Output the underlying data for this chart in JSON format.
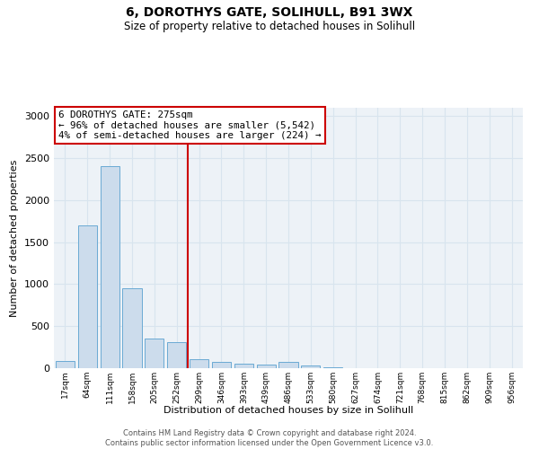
{
  "title": "6, DOROTHYS GATE, SOLIHULL, B91 3WX",
  "subtitle": "Size of property relative to detached houses in Solihull",
  "xlabel": "Distribution of detached houses by size in Solihull",
  "ylabel": "Number of detached properties",
  "bin_labels": [
    "17sqm",
    "64sqm",
    "111sqm",
    "158sqm",
    "205sqm",
    "252sqm",
    "299sqm",
    "346sqm",
    "393sqm",
    "439sqm",
    "486sqm",
    "533sqm",
    "580sqm",
    "627sqm",
    "674sqm",
    "721sqm",
    "768sqm",
    "815sqm",
    "862sqm",
    "909sqm",
    "956sqm"
  ],
  "bar_heights": [
    90,
    1700,
    2400,
    950,
    350,
    310,
    110,
    80,
    55,
    40,
    75,
    35,
    10,
    5,
    3,
    2,
    2,
    2,
    1,
    1,
    1
  ],
  "bar_color": "#ccdcec",
  "bar_edge_color": "#6aaad4",
  "red_line_x": 5.5,
  "annotation_text_line1": "6 DOROTHYS GATE: 275sqm",
  "annotation_text_line2": "← 96% of detached houses are smaller (5,542)",
  "annotation_text_line3": "4% of semi-detached houses are larger (224) →",
  "annotation_box_color": "#ffffff",
  "annotation_box_edge": "#cc0000",
  "red_line_color": "#cc0000",
  "grid_color": "#d8e4ee",
  "background_color": "#edf2f7",
  "footer_line1": "Contains HM Land Registry data © Crown copyright and database right 2024.",
  "footer_line2": "Contains public sector information licensed under the Open Government Licence v3.0.",
  "ylim": [
    0,
    3100
  ],
  "yticks": [
    0,
    500,
    1000,
    1500,
    2000,
    2500,
    3000
  ],
  "ytick_fontsize": 8,
  "xtick_fontsize": 6.5,
  "ylabel_fontsize": 8,
  "xlabel_fontsize": 8,
  "title_fontsize": 10,
  "subtitle_fontsize": 8.5,
  "footer_fontsize": 6,
  "annotation_fontsize": 7.8
}
